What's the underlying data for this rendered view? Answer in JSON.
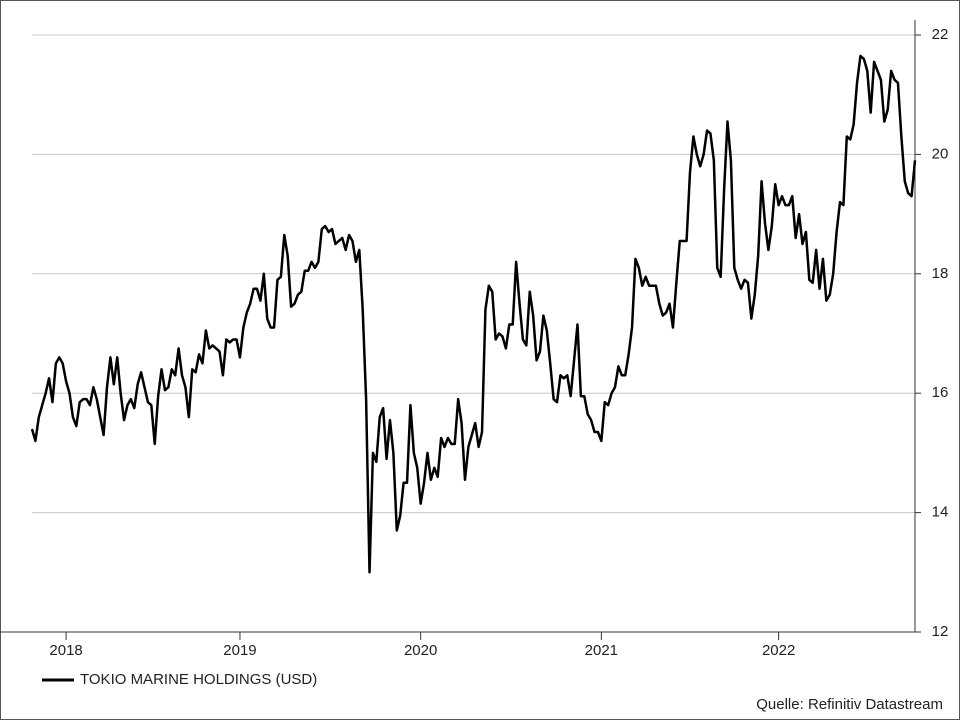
{
  "chart_data": {
    "type": "line",
    "categories": [
      null,
      null,
      null,
      null,
      null,
      null,
      null,
      null,
      null,
      null,
      "2018",
      null,
      null,
      null,
      null,
      null,
      null,
      null,
      null,
      null,
      null,
      null,
      null,
      null,
      null,
      null,
      null,
      null,
      null,
      null,
      null,
      null,
      null,
      null,
      null,
      null,
      null,
      null,
      null,
      null,
      null,
      null,
      null,
      null,
      null,
      null,
      null,
      null,
      null,
      null,
      null,
      null,
      null,
      null,
      null,
      null,
      null,
      null,
      null,
      null,
      null,
      "2019",
      null,
      null,
      null,
      null,
      null,
      null,
      null,
      null,
      null,
      null,
      null,
      null,
      null,
      null,
      null,
      null,
      null,
      null,
      null,
      null,
      null,
      null,
      null,
      null,
      null,
      null,
      null,
      null,
      null,
      null,
      null,
      null,
      null,
      null,
      null,
      null,
      null,
      null,
      null,
      null,
      null,
      null,
      null,
      null,
      null,
      null,
      null,
      null,
      null,
      null,
      null,
      null,
      "2020",
      null,
      null,
      null,
      null,
      null,
      null,
      null,
      null,
      null,
      null,
      null,
      null,
      null,
      null,
      null,
      null,
      null,
      null,
      null,
      null,
      null,
      null,
      null,
      null,
      null,
      null,
      null,
      null,
      null,
      null,
      null,
      null,
      null,
      null,
      null,
      null,
      null,
      null,
      null,
      null,
      null,
      null,
      null,
      null,
      null,
      null,
      null,
      null,
      null,
      null,
      null,
      null,
      "2021",
      null,
      null,
      null,
      null,
      null,
      null,
      null,
      null,
      null,
      null,
      null,
      null,
      null,
      null,
      null,
      null,
      null,
      null,
      null,
      null,
      null,
      null,
      null,
      null,
      null,
      null,
      null,
      null,
      null,
      null,
      null,
      null,
      null,
      null,
      null,
      null,
      null,
      null,
      null,
      null,
      null,
      null,
      null,
      null,
      null,
      null,
      null,
      null,
      null,
      null,
      null,
      "2022",
      null,
      null,
      null,
      null,
      null,
      null,
      null,
      null,
      null,
      null,
      null,
      null,
      null,
      null,
      null,
      null,
      null,
      null,
      null,
      null,
      null,
      null,
      null,
      null,
      null,
      null,
      null,
      null,
      null,
      null,
      null,
      null,
      null,
      null,
      null,
      null,
      null,
      null,
      null,
      null
    ],
    "series": [
      {
        "name": "TOKIO MARINE HOLDINGS (USD)",
        "color": "#000000",
        "values": [
          15.4,
          15.2,
          15.6,
          15.8,
          16.0,
          16.25,
          15.85,
          16.5,
          16.6,
          16.5,
          16.2,
          16.0,
          15.6,
          15.45,
          15.85,
          15.9,
          15.9,
          15.8,
          16.1,
          15.9,
          15.6,
          15.3,
          16.1,
          16.6,
          16.15,
          16.6,
          16.0,
          15.55,
          15.8,
          15.9,
          15.75,
          16.15,
          16.35,
          16.1,
          15.85,
          15.8,
          15.15,
          15.95,
          16.4,
          16.05,
          16.1,
          16.4,
          16.3,
          16.75,
          16.3,
          16.1,
          15.6,
          16.4,
          16.35,
          16.65,
          16.5,
          17.05,
          16.75,
          16.8,
          16.75,
          16.7,
          16.3,
          16.9,
          16.85,
          16.9,
          16.9,
          16.6,
          17.1,
          17.35,
          17.5,
          17.75,
          17.75,
          17.55,
          18.0,
          17.25,
          17.1,
          17.1,
          17.9,
          17.95,
          18.65,
          18.3,
          17.45,
          17.5,
          17.65,
          17.7,
          18.05,
          18.05,
          18.2,
          18.1,
          18.2,
          18.75,
          18.8,
          18.7,
          18.75,
          18.5,
          18.55,
          18.6,
          18.4,
          18.65,
          18.55,
          18.2,
          18.4,
          17.4,
          15.9,
          13.0,
          15.0,
          14.85,
          15.6,
          15.75,
          14.9,
          15.55,
          15.0,
          13.7,
          13.95,
          14.5,
          14.5,
          15.8,
          15.0,
          14.75,
          14.15,
          14.5,
          15.0,
          14.55,
          14.75,
          14.6,
          15.25,
          15.1,
          15.25,
          15.15,
          15.15,
          15.9,
          15.5,
          14.55,
          15.1,
          15.3,
          15.5,
          15.1,
          15.35,
          17.4,
          17.8,
          17.7,
          16.9,
          17.0,
          16.95,
          16.75,
          17.15,
          17.15,
          18.2,
          17.5,
          16.9,
          16.8,
          17.7,
          17.3,
          16.55,
          16.7,
          17.3,
          17.05,
          16.5,
          15.9,
          15.85,
          16.3,
          16.25,
          16.3,
          15.95,
          16.55,
          17.15,
          15.95,
          15.95,
          15.65,
          15.55,
          15.35,
          15.35,
          15.2,
          15.85,
          15.8,
          16.0,
          16.1,
          16.45,
          16.3,
          16.3,
          16.65,
          17.1,
          18.25,
          18.1,
          17.8,
          17.95,
          17.8,
          17.8,
          17.8,
          17.5,
          17.3,
          17.35,
          17.5,
          17.1,
          17.85,
          18.55,
          18.55,
          18.55,
          19.7,
          20.3,
          20.0,
          19.8,
          20.0,
          20.4,
          20.35,
          19.9,
          18.1,
          17.95,
          19.4,
          20.55,
          19.9,
          18.1,
          17.9,
          17.75,
          17.9,
          17.85,
          17.25,
          17.65,
          18.3,
          19.55,
          18.85,
          18.4,
          18.8,
          19.5,
          19.15,
          19.3,
          19.15,
          19.15,
          19.3,
          18.6,
          19.0,
          18.5,
          18.7,
          17.9,
          17.85,
          18.4,
          17.75,
          18.25,
          17.55,
          17.65,
          18.0,
          18.7,
          19.2,
          19.15,
          20.3,
          20.25,
          20.5,
          21.2,
          21.65,
          21.6,
          21.4,
          20.7,
          21.55,
          21.4,
          21.25,
          20.55,
          20.75,
          21.4,
          21.25,
          21.2,
          20.3,
          19.55,
          19.35,
          19.3,
          19.9
        ]
      }
    ],
    "ylim": [
      12,
      22
    ],
    "yticks": [
      12,
      14,
      16,
      18,
      20,
      22
    ],
    "grid": true,
    "source": "Quelle: Refinitiv Datastream"
  }
}
